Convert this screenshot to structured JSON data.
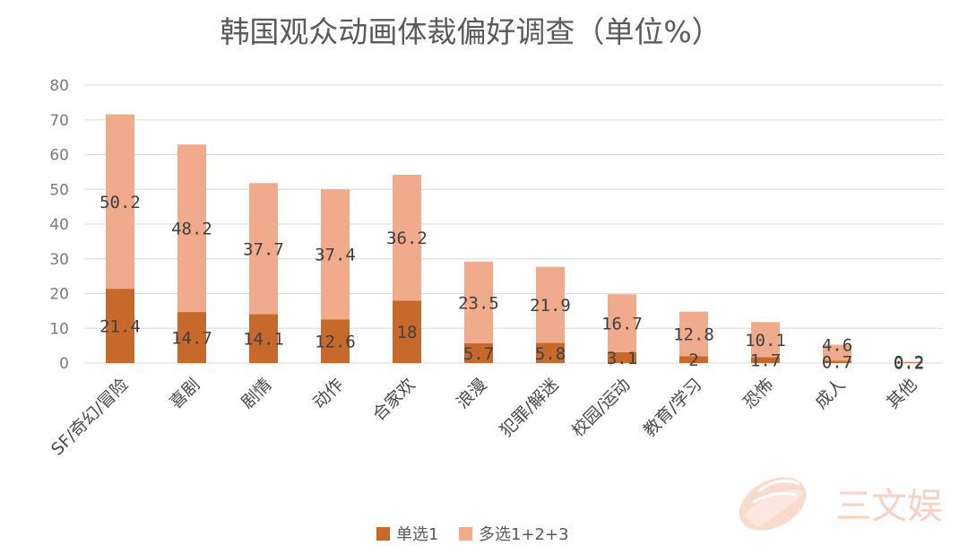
{
  "chart_data": {
    "type": "bar",
    "stacked": true,
    "title": "韩国观众动画体裁偏好调查（单位%）",
    "categories": [
      "SF/奇幻/冒险",
      "喜剧",
      "剧情",
      "动作",
      "合家欢",
      "浪漫",
      "犯罪/解迷",
      "校园/运动",
      "教育/学习",
      "恐怖",
      "成人",
      "其他"
    ],
    "series": [
      {
        "name": "单选1",
        "color": "#c8692c",
        "values": [
          21.4,
          14.7,
          14.1,
          12.6,
          18,
          5.7,
          5.8,
          3.1,
          2,
          1.7,
          0.7,
          0.2
        ],
        "labels": [
          "21.4",
          "14.7",
          "14.1",
          "12.6",
          "18",
          "5.7",
          "5.8",
          "3.1",
          "2",
          "1.7",
          "0.7",
          "0.2"
        ]
      },
      {
        "name": "多选1+2+3",
        "color": "#f0aa8c",
        "values": [
          50.2,
          48.2,
          37.7,
          37.4,
          36.2,
          23.5,
          21.9,
          16.7,
          12.8,
          10.1,
          4.6,
          0.2
        ],
        "labels": [
          "50.2",
          "48.2",
          "37.7",
          "37.4",
          "36.2",
          "23.5",
          "21.9",
          "16.7",
          "12.8",
          "10.1",
          "4.6",
          "0.2"
        ]
      }
    ],
    "ylim": [
      0,
      80
    ],
    "yticks": [
      "0",
      "10",
      "20",
      "30",
      "40",
      "50",
      "60",
      "70",
      "80"
    ],
    "grid": true,
    "legend_position": "bottom",
    "watermark": "三文娱"
  }
}
